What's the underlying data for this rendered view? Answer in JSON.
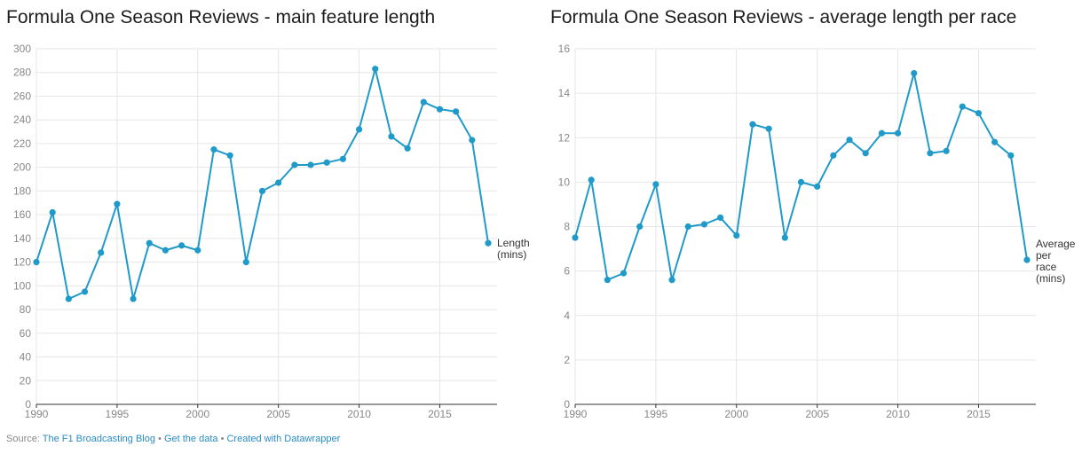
{
  "chart_data": [
    {
      "type": "line",
      "title": "Formula One Season Reviews - main feature length",
      "x": [
        1990,
        1991,
        1992,
        1993,
        1994,
        1995,
        1996,
        1997,
        1998,
        1999,
        2000,
        2001,
        2002,
        2003,
        2004,
        2005,
        2006,
        2007,
        2008,
        2009,
        2010,
        2011,
        2012,
        2013,
        2014,
        2015,
        2016,
        2017,
        2018
      ],
      "series": [
        {
          "name": "Length (mins)",
          "values": [
            120,
            162,
            89,
            95,
            128,
            169,
            89,
            136,
            130,
            134,
            130,
            215,
            210,
            120,
            180,
            187,
            202,
            202,
            204,
            207,
            232,
            283,
            226,
            216,
            255,
            249,
            247,
            223,
            136
          ]
        }
      ],
      "xlim": [
        1990,
        2018
      ],
      "ylim": [
        0,
        300
      ],
      "x_ticks": [
        1990,
        1995,
        2000,
        2005,
        2010,
        2015
      ],
      "y_ticks": [
        0,
        20,
        40,
        60,
        80,
        100,
        120,
        140,
        160,
        180,
        200,
        220,
        240,
        260,
        280,
        300
      ],
      "end_label": [
        "Length",
        "(mins)"
      ],
      "grid": true,
      "color": "#1f9ac9"
    },
    {
      "type": "line",
      "title": "Formula One Season Reviews - average length per race",
      "x": [
        1990,
        1991,
        1992,
        1993,
        1994,
        1995,
        1996,
        1997,
        1998,
        1999,
        2000,
        2001,
        2002,
        2003,
        2004,
        2005,
        2006,
        2007,
        2008,
        2009,
        2010,
        2011,
        2012,
        2013,
        2014,
        2015,
        2016,
        2017,
        2018
      ],
      "series": [
        {
          "name": "Average per race (mins)",
          "values": [
            7.5,
            10.1,
            5.6,
            5.9,
            8.0,
            9.9,
            5.6,
            8.0,
            8.1,
            8.4,
            7.6,
            12.6,
            12.4,
            7.5,
            10.0,
            9.8,
            11.2,
            11.9,
            11.3,
            12.2,
            12.2,
            14.9,
            11.3,
            11.4,
            13.4,
            13.1,
            11.8,
            11.2,
            6.5
          ]
        }
      ],
      "xlim": [
        1990,
        2018
      ],
      "ylim": [
        0,
        16
      ],
      "x_ticks": [
        1990,
        1995,
        2000,
        2005,
        2010,
        2015
      ],
      "y_ticks": [
        0,
        2,
        4,
        6,
        8,
        10,
        12,
        14,
        16
      ],
      "end_label": [
        "Average",
        "per",
        "race",
        "(mins)"
      ],
      "grid": true,
      "color": "#1f9ac9"
    }
  ],
  "footer": {
    "source_prefix": "Source:",
    "source_link": "The F1 Broadcasting Blog",
    "separator": "•",
    "data_link": "Get the data",
    "created_link": "Created with Datawrapper"
  }
}
